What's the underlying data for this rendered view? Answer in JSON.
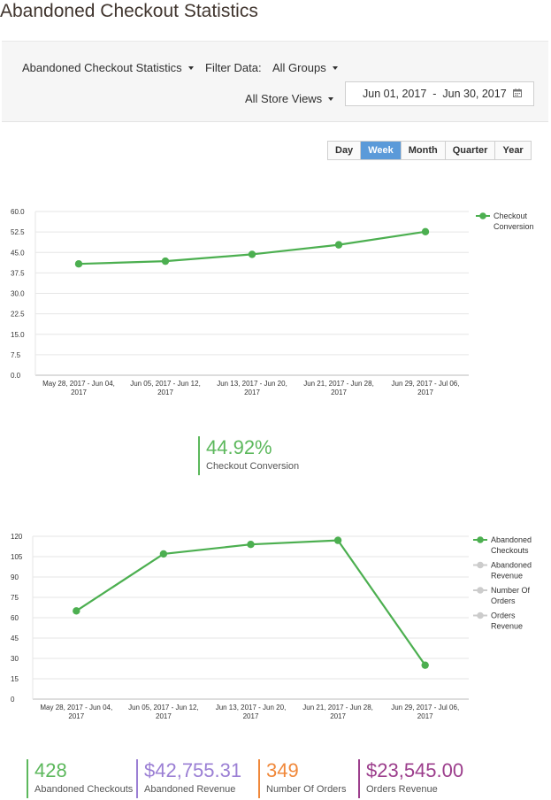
{
  "page": {
    "title": "Abandoned Checkout Statistics"
  },
  "filters": {
    "report_select": "Abandoned Checkout Statistics",
    "filter_label": "Filter Data:",
    "group_select": "All Groups",
    "store_views_select": "All Store Views",
    "date_from": "Jun 01, 2017",
    "date_sep": "-",
    "date_to": "Jun 30, 2017",
    "calendar_icon": "calendar-icon"
  },
  "periods": {
    "active": "Week",
    "items": [
      {
        "key": "day",
        "label": "Day"
      },
      {
        "key": "week",
        "label": "Week"
      },
      {
        "key": "month",
        "label": "Month"
      },
      {
        "key": "quarter",
        "label": "Quarter"
      },
      {
        "key": "year",
        "label": "Year"
      }
    ]
  },
  "chart_data": [
    {
      "type": "line",
      "categories": [
        [
          "May 28, 2017 - Jun 04,",
          "2017"
        ],
        [
          "Jun 05, 2017 - Jun 12,",
          "2017"
        ],
        [
          "Jun 13, 2017 - Jun 20,",
          "2017"
        ],
        [
          "Jun 21, 2017 - Jun 28,",
          "2017"
        ],
        [
          "Jun 29, 2017 - Jul 06,",
          "2017"
        ]
      ],
      "y_ticks": [
        "0.0",
        "7.5",
        "15.0",
        "22.5",
        "30.0",
        "37.5",
        "45.0",
        "52.5",
        "60.0"
      ],
      "ylim": [
        0,
        60
      ],
      "grid": true,
      "legend_position": "right",
      "series": [
        {
          "name": "Checkout Conversion",
          "color": "#4caf50",
          "active": true,
          "values": [
            40.8,
            41.8,
            44.3,
            47.8,
            52.6
          ]
        }
      ]
    },
    {
      "type": "line",
      "categories": [
        [
          "May 28, 2017 - Jun 04,",
          "2017"
        ],
        [
          "Jun 05, 2017 - Jun 12,",
          "2017"
        ],
        [
          "Jun 13, 2017 - Jun 20,",
          "2017"
        ],
        [
          "Jun 21, 2017 - Jun 28,",
          "2017"
        ],
        [
          "Jun 29, 2017 - Jul 06,",
          "2017"
        ]
      ],
      "y_ticks": [
        "0",
        "15",
        "30",
        "45",
        "60",
        "75",
        "90",
        "105",
        "120"
      ],
      "ylim": [
        0,
        120
      ],
      "grid": true,
      "legend_position": "right",
      "series": [
        {
          "name": "Abandoned Checkouts",
          "color": "#4caf50",
          "active": true,
          "values": [
            65,
            107,
            114,
            117,
            25
          ]
        },
        {
          "name": "Abandoned Revenue",
          "color": "#cccccc",
          "active": false
        },
        {
          "name": "Number Of Orders",
          "color": "#cccccc",
          "active": false
        },
        {
          "name": "Orders Revenue",
          "color": "#cccccc",
          "active": false
        }
      ]
    }
  ],
  "conversion_kpi": {
    "value": "44.92%",
    "label": "Checkout Conversion",
    "color": "#5cb85c"
  },
  "kpis": [
    {
      "value": "428",
      "label": "Abandoned Checkouts",
      "color": "#5cb85c"
    },
    {
      "value": "$42,755.31",
      "label": "Abandoned Revenue",
      "color": "#9b7fd4"
    },
    {
      "value": "349",
      "label": "Number Of Orders",
      "color": "#f0883a"
    },
    {
      "value": "$23,545.00",
      "label": "Orders Revenue",
      "color": "#9c3e8c"
    }
  ]
}
